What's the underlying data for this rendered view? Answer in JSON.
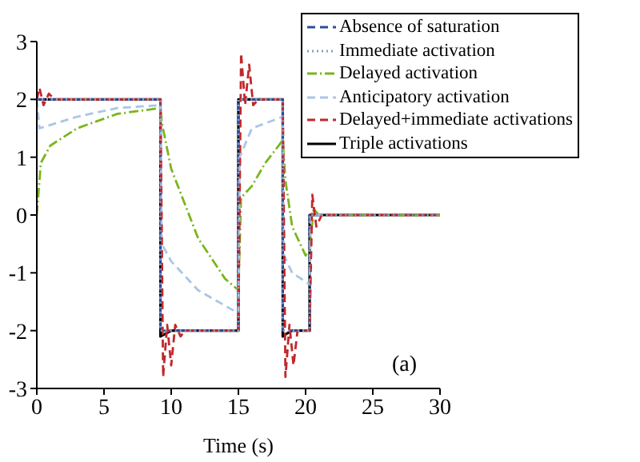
{
  "chart_data": {
    "type": "line",
    "xlabel": "Time (s)",
    "xlim": [
      0,
      30
    ],
    "xticks": [
      0,
      5,
      10,
      15,
      20,
      25,
      30
    ],
    "ylim": [
      -3,
      3
    ],
    "yticks": [
      -3,
      -2,
      -1,
      0,
      1,
      2,
      3
    ],
    "grid": false,
    "legend": "top right",
    "annotations": [
      "(a)"
    ],
    "series": [
      {
        "name": "Absence of saturation",
        "color": "#2b4f9e",
        "line_style": "dashed",
        "x": [
          0,
          9.2,
          9.2,
          15,
          15,
          18.3,
          18.3,
          20.3,
          20.3,
          30
        ],
        "values": [
          2,
          2,
          -2,
          -2,
          2,
          2,
          -2,
          -2,
          0,
          0
        ]
      },
      {
        "name": "Immediate activation",
        "color": "#8a9cc4",
        "line_style": "dotted",
        "x": [
          0,
          9.2,
          9.2,
          15,
          15,
          18.3,
          18.3,
          20.3,
          20.3,
          30
        ],
        "values": [
          2,
          2,
          -2,
          -2,
          2,
          2,
          -2,
          -2,
          0,
          0
        ]
      },
      {
        "name": "Delayed activation",
        "color": "#7ab51d",
        "line_style": "dashdot",
        "x": [
          0,
          0.3,
          1,
          3,
          6,
          9.2,
          9.3,
          10,
          12,
          14,
          15,
          15.2,
          16,
          17,
          18,
          18.3,
          18.5,
          19,
          20,
          20.3,
          20.6,
          21,
          30
        ],
        "values": [
          0,
          0.9,
          1.2,
          1.5,
          1.75,
          1.85,
          1.6,
          0.8,
          -0.4,
          -1.1,
          -1.3,
          0.3,
          0.5,
          0.9,
          1.2,
          1.3,
          0.6,
          -0.2,
          -0.7,
          -0.6,
          0.1,
          0,
          0
        ]
      },
      {
        "name": "Anticipatory activation",
        "color": "#a9c6e6",
        "line_style": "dashed",
        "x": [
          0,
          0.2,
          3,
          6,
          9.2,
          9.3,
          10,
          12,
          15,
          15.1,
          16,
          18.3,
          18.4,
          19,
          20.3,
          20.4,
          30
        ],
        "values": [
          2,
          1.5,
          1.7,
          1.85,
          1.9,
          -0.5,
          -0.8,
          -1.3,
          -1.7,
          1,
          1.5,
          1.7,
          -0.7,
          -1,
          -1.2,
          0,
          0
        ]
      },
      {
        "name": "Delayed+immediate activations",
        "color": "#c0282d",
        "line_style": "dashed",
        "x": [
          0,
          0.2,
          0.5,
          0.9,
          1.3,
          9.2,
          9.4,
          9.7,
          10,
          10.3,
          10.7,
          11,
          15,
          15.2,
          15.5,
          15.8,
          16.1,
          16.5,
          18.3,
          18.5,
          18.8,
          19.1,
          19.4,
          20.3,
          20.5,
          20.8,
          21.2,
          30
        ],
        "values": [
          2,
          2.2,
          1.9,
          2.1,
          2,
          2,
          -2.8,
          -1.9,
          -2.6,
          -1.9,
          -2.1,
          -2,
          -2,
          2.8,
          1.9,
          2.6,
          1.9,
          2,
          2,
          -2.8,
          -1.9,
          -2.6,
          -2,
          -2,
          0.35,
          -0.2,
          0,
          0
        ]
      },
      {
        "name": "Triple activations",
        "color": "#000000",
        "line_style": "solid",
        "x": [
          0,
          9.2,
          9.2,
          9.6,
          10,
          15,
          15,
          18.3,
          18.3,
          18.6,
          19,
          20.3,
          20.3,
          30
        ],
        "values": [
          2,
          2,
          -2.1,
          -2.05,
          -2,
          -2,
          2,
          2,
          -2.1,
          -2.05,
          -2,
          -2,
          0,
          0
        ]
      }
    ]
  }
}
